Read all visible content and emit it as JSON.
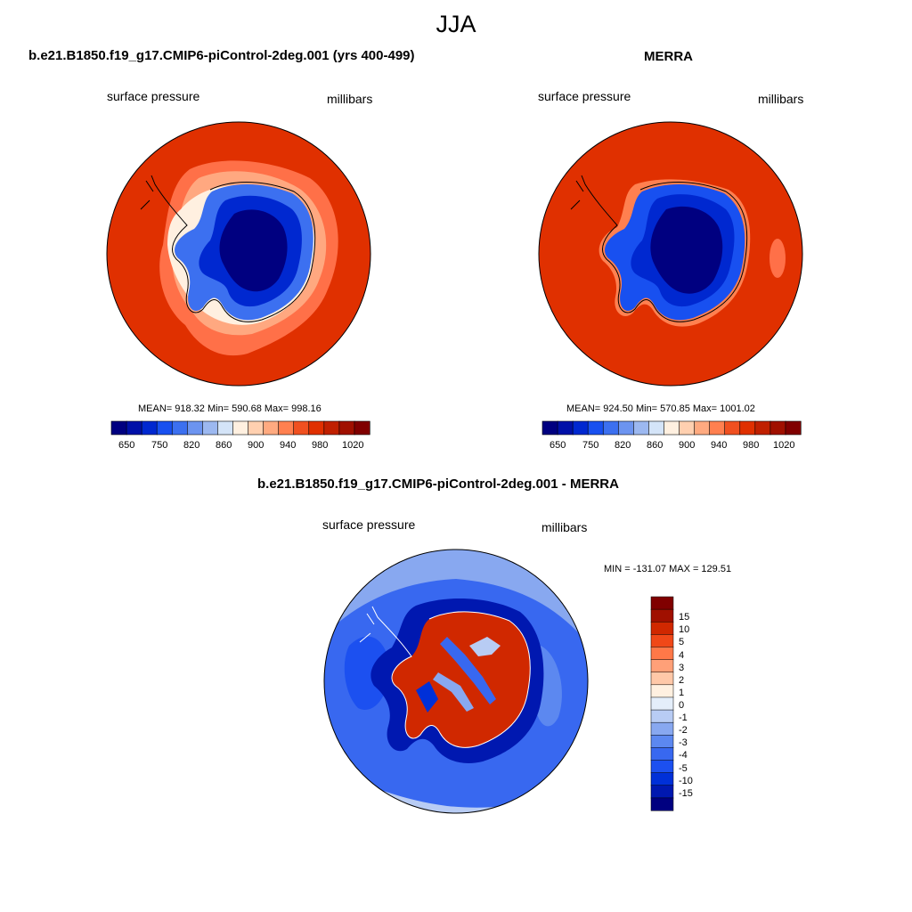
{
  "season": "JJA",
  "colors": {
    "blues": [
      "#000080",
      "#0010a8",
      "#0028d0",
      "#1850f0",
      "#3c70f0",
      "#6c94f0",
      "#9cb8f0",
      "#d4e4f8"
    ],
    "reds": [
      "#fff0e0",
      "#ffd0b0",
      "#ffaa80",
      "#ff8050",
      "#f05020",
      "#e03000",
      "#c02000",
      "#a01000",
      "#800000"
    ],
    "diff": [
      "#000080",
      "#0018b0",
      "#0030d8",
      "#1c50f0",
      "#3868f0",
      "#5c88f0",
      "#88a8f0",
      "#b8ccf4",
      "#e4eefa",
      "#fff0e0",
      "#ffc8a8",
      "#ffa078",
      "#ff7848",
      "#f04818",
      "#d02800",
      "#a01000",
      "#800000"
    ],
    "ocean_model": "#e03000",
    "ocean_obs": "#e03000",
    "coast": "#000000"
  },
  "panels": {
    "model": {
      "title": "b.e21.B1850.f19_g17.CMIP6-piControl-2deg.001 (yrs 400-499)",
      "left_label": "surface pressure",
      "right_label": "millibars",
      "stats": "MEAN= 918.32  Min= 590.68  Max= 998.16"
    },
    "obs": {
      "title": "MERRA",
      "left_label": "surface pressure",
      "right_label": "millibars",
      "stats": "MEAN= 924.50  Min= 570.85  Max= 1001.02"
    },
    "diff": {
      "title": "b.e21.B1850.f19_g17.CMIP6-piControl-2deg.001 - MERRA",
      "left_label": "surface pressure",
      "right_label": "millibars",
      "stats": "MIN = -131.07 MAX = 129.51"
    }
  },
  "colorbar_ticks": [
    "650",
    "750",
    "820",
    "860",
    "900",
    "940",
    "980",
    "1020"
  ],
  "diff_colorbar_ticks": [
    "15",
    "10",
    "5",
    "4",
    "3",
    "2",
    "1",
    "0",
    "-1",
    "-2",
    "-3",
    "-4",
    "-5",
    "-10",
    "-15"
  ]
}
